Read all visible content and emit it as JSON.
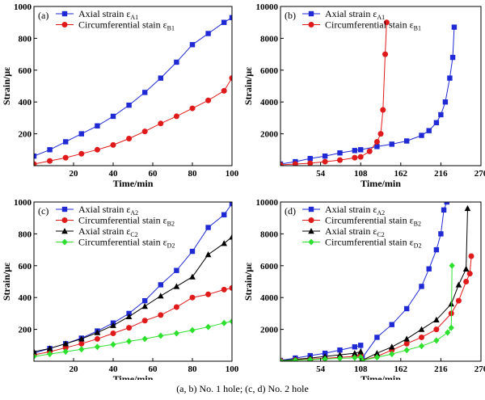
{
  "caption": "(a, b) No. 1 hole; (c, d) No. 2 hole",
  "chart_data": [
    {
      "type": "line",
      "panel_label": "(a)",
      "xlabel": "Time/min",
      "ylabel": "Strain/με",
      "xlim": [
        0,
        100
      ],
      "ylim": [
        0,
        1000
      ],
      "xticks": [
        20,
        40,
        60,
        80,
        100
      ],
      "yticks": [
        200,
        400,
        600,
        800,
        1000
      ],
      "legend_position": "top-left",
      "series": [
        {
          "name": "Axial strain ε",
          "sub": "A1",
          "color": "#1f2ad4",
          "marker": "square",
          "x": [
            0,
            8,
            16,
            24,
            32,
            40,
            48,
            56,
            64,
            72,
            80,
            88,
            96,
            100
          ],
          "y": [
            60,
            100,
            150,
            200,
            250,
            310,
            380,
            460,
            550,
            650,
            760,
            830,
            900,
            930
          ]
        },
        {
          "name": "Circumferential stain ε",
          "sub": "B1",
          "color": "#e01a1a",
          "marker": "circle",
          "x": [
            0,
            8,
            16,
            24,
            32,
            40,
            48,
            56,
            64,
            72,
            80,
            88,
            96,
            100
          ],
          "y": [
            10,
            30,
            50,
            75,
            100,
            130,
            170,
            215,
            265,
            310,
            360,
            410,
            470,
            550
          ]
        }
      ]
    },
    {
      "type": "line",
      "panel_label": "(b)",
      "xlabel": "Time/min",
      "ylabel": "Strain/με",
      "xlim": [
        0,
        270
      ],
      "ylim": [
        0,
        10000
      ],
      "xticks": [
        54,
        108,
        162,
        216,
        270
      ],
      "yticks": [
        2000,
        4000,
        6000,
        8000,
        10000
      ],
      "legend_position": "top-left",
      "series": [
        {
          "name": "Axial strain ε",
          "sub": "A1",
          "color": "#1f2ad4",
          "marker": "square",
          "x": [
            0,
            20,
            40,
            60,
            80,
            100,
            108,
            130,
            150,
            170,
            190,
            200,
            210,
            216,
            222,
            228,
            232,
            234
          ],
          "y": [
            100,
            250,
            450,
            600,
            800,
            950,
            1000,
            1200,
            1350,
            1550,
            1900,
            2200,
            2700,
            3200,
            4000,
            5500,
            6800,
            8700
          ]
        },
        {
          "name": "Circumferential stain ε",
          "sub": "B1",
          "color": "#e01a1a",
          "marker": "circle",
          "x": [
            0,
            20,
            40,
            60,
            80,
            100,
            108,
            120,
            130,
            135,
            138,
            141,
            143
          ],
          "y": [
            50,
            100,
            150,
            250,
            350,
            500,
            550,
            900,
            1500,
            2000,
            3500,
            7000,
            9000
          ]
        }
      ]
    },
    {
      "type": "line",
      "panel_label": "(c)",
      "xlabel": "Time/min",
      "ylabel": "Strain/με",
      "xlim": [
        0,
        100
      ],
      "ylim": [
        0,
        1000
      ],
      "xticks": [
        20,
        40,
        60,
        80,
        100
      ],
      "yticks": [
        200,
        400,
        600,
        800,
        1000
      ],
      "legend_position": "top-left",
      "series": [
        {
          "name": "Axial strain ε",
          "sub": "A2",
          "color": "#1f2ad4",
          "marker": "square",
          "x": [
            0,
            8,
            16,
            24,
            32,
            40,
            48,
            56,
            64,
            72,
            80,
            88,
            96,
            100
          ],
          "y": [
            50,
            80,
            110,
            145,
            190,
            240,
            300,
            380,
            480,
            570,
            690,
            840,
            920,
            990
          ]
        },
        {
          "name": "Circumferential stain ε",
          "sub": "B2",
          "color": "#e01a1a",
          "marker": "circle",
          "x": [
            0,
            8,
            16,
            24,
            32,
            40,
            48,
            56,
            64,
            72,
            80,
            88,
            96,
            100
          ],
          "y": [
            40,
            60,
            85,
            110,
            140,
            175,
            210,
            255,
            290,
            340,
            400,
            420,
            450,
            460
          ]
        },
        {
          "name": "Axial strain ε",
          "sub": "C2",
          "color": "#000000",
          "marker": "triangle",
          "x": [
            0,
            8,
            16,
            24,
            32,
            40,
            48,
            56,
            64,
            72,
            80,
            88,
            96,
            100
          ],
          "y": [
            60,
            80,
            110,
            140,
            180,
            225,
            280,
            345,
            410,
            470,
            530,
            670,
            740,
            780
          ]
        },
        {
          "name": "Circumferential stain ε",
          "sub": "D2",
          "color": "#2ee02e",
          "marker": "diamond",
          "x": [
            0,
            8,
            16,
            24,
            32,
            40,
            48,
            56,
            64,
            72,
            80,
            88,
            96,
            100
          ],
          "y": [
            30,
            45,
            60,
            75,
            90,
            105,
            125,
            140,
            160,
            175,
            195,
            215,
            240,
            250
          ]
        }
      ]
    },
    {
      "type": "line",
      "panel_label": "(d)",
      "xlabel": "Time/min",
      "ylabel": "Strain/με",
      "xlim": [
        0,
        270
      ],
      "ylim": [
        0,
        10000
      ],
      "xticks": [
        54,
        108,
        162,
        216,
        270
      ],
      "yticks": [
        2000,
        4000,
        6000,
        8000,
        10000
      ],
      "legend_position": "top-left",
      "series": [
        {
          "name": "Axial strain ε",
          "sub": "A2",
          "color": "#1f2ad4",
          "marker": "square",
          "x": [
            0,
            20,
            40,
            60,
            80,
            100,
            108,
            110,
            130,
            150,
            170,
            190,
            200,
            210,
            216,
            220,
            224
          ],
          "y": [
            50,
            200,
            350,
            500,
            700,
            900,
            1000,
            200,
            1500,
            2300,
            3300,
            4700,
            5800,
            7000,
            8000,
            9500,
            10000
          ]
        },
        {
          "name": "Circumferential stain ε",
          "sub": "B2",
          "color": "#e01a1a",
          "marker": "circle",
          "x": [
            0,
            20,
            40,
            60,
            80,
            100,
            108,
            110,
            130,
            150,
            170,
            190,
            210,
            230,
            240,
            250,
            255,
            257
          ],
          "y": [
            30,
            80,
            130,
            180,
            250,
            300,
            350,
            50,
            300,
            700,
            1100,
            1500,
            2000,
            3000,
            3800,
            5000,
            5500,
            6600
          ]
        },
        {
          "name": "Axial strain ε",
          "sub": "C2",
          "color": "#000000",
          "marker": "triangle",
          "x": [
            0,
            20,
            40,
            60,
            80,
            100,
            108,
            110,
            130,
            150,
            170,
            190,
            210,
            230,
            240,
            250,
            252
          ],
          "y": [
            40,
            120,
            200,
            300,
            400,
            500,
            600,
            50,
            500,
            900,
            1400,
            2000,
            2600,
            3600,
            4800,
            5800,
            9600
          ]
        },
        {
          "name": "Circumferential stain ε",
          "sub": "D2",
          "color": "#2ee02e",
          "marker": "diamond",
          "x": [
            0,
            20,
            40,
            60,
            80,
            100,
            108,
            110,
            130,
            150,
            170,
            190,
            210,
            225,
            230,
            231
          ],
          "y": [
            20,
            60,
            100,
            140,
            180,
            220,
            250,
            50,
            250,
            450,
            700,
            950,
            1300,
            1800,
            2100,
            6000
          ]
        }
      ]
    }
  ]
}
